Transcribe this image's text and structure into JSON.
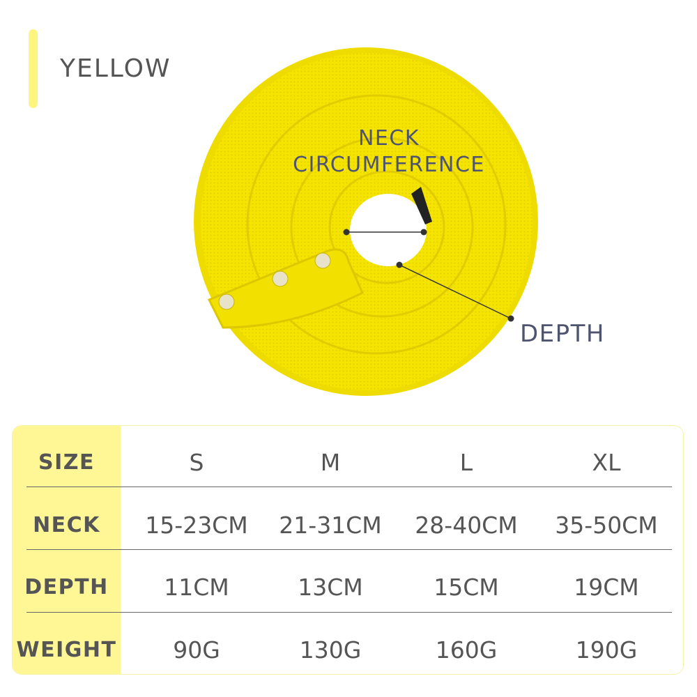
{
  "color_name": "YELLOW",
  "accent_color": "#fff796",
  "product_color": "#f5e400",
  "labels": {
    "neck_line1": "NECK",
    "neck_line2": "CIRCUMFERENCE",
    "depth": "DEPTH"
  },
  "table": {
    "rows": [
      {
        "header": "SIZE",
        "values": [
          "S",
          "M",
          "L",
          "XL"
        ]
      },
      {
        "header": "NECK",
        "values": [
          "15-23CM",
          "21-31CM",
          "28-40CM",
          "35-50CM"
        ]
      },
      {
        "header": "DEPTH",
        "values": [
          "11CM",
          "13CM",
          "15CM",
          "19CM"
        ]
      },
      {
        "header": "WEIGHT",
        "values": [
          "90G",
          "130G",
          "160G",
          "190G"
        ]
      }
    ]
  }
}
